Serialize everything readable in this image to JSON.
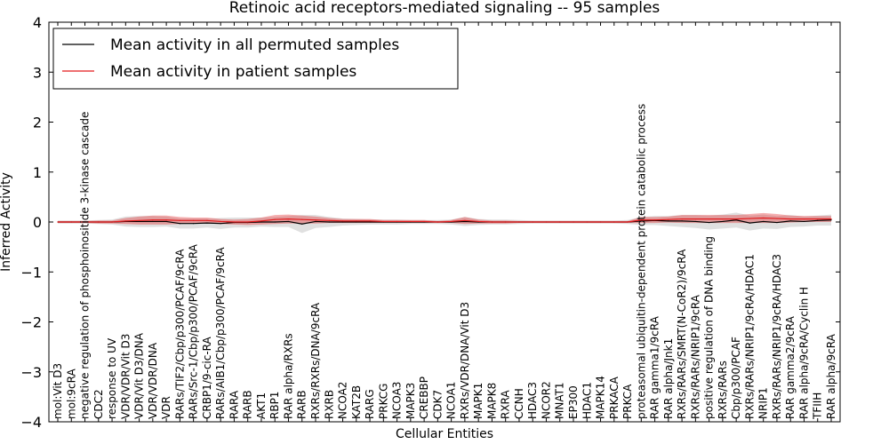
{
  "chart_data": {
    "type": "line",
    "title": "Retinoic acid receptors-mediated signaling -- 95 samples",
    "xlabel": "Cellular Entities",
    "ylabel": "Inferred Activity",
    "ylim": [
      -4,
      4
    ],
    "yticks": [
      -4,
      -3,
      -2,
      -1,
      0,
      1,
      2,
      3,
      4
    ],
    "ytick_labels": [
      "−4",
      "−3",
      "−2",
      "−1",
      "0",
      "1",
      "2",
      "3",
      "4"
    ],
    "legend": {
      "placement": "top-left",
      "entries": [
        {
          "label": "Mean activity in all permuted samples",
          "color": "#000000"
        },
        {
          "label": "Mean activity in patient samples",
          "color": "#e31a1c"
        }
      ]
    },
    "categories": [
      "mol:Vit D3",
      "mol:9cRA",
      "negative regulation of phosphoinositide 3-kinase cascade",
      "CDC2",
      "response to UV",
      "VDR/VDR/Vit D3",
      "VDR/Vit D3/DNA",
      "VDR/VDR/DNA",
      "VDR",
      "RARs/TIF2/Cbp/p300/PCAF/9cRA",
      "RARs/Src-1/Cbp/p300/PCAF/9cRA",
      "CRBP1/9-cic-RA",
      "RARs/AIB1/Cbp/p300/PCAF/9cRA",
      "RARA",
      "RARB",
      "AKT1",
      "RBP1",
      "RAR alpha/RXRs",
      "RARB",
      "RXRs/RXRs/DNA/9cRA",
      "RXRB",
      "NCOA2",
      "KAT2B",
      "RARG",
      "PRKCG",
      "NCOA3",
      "MAPK3",
      "CREBBP",
      "CDK7",
      "NCOA1",
      "RXRs/VDR/DNA/Vit D3",
      "MAPK1",
      "MAPK8",
      "RXRA",
      "CCNH",
      "HDAC3",
      "NCOR2",
      "MNAT1",
      "EP300",
      "HDAC1",
      "MAPK14",
      "PRKACA",
      "PRKCA",
      "proteasomal ubiquitin-dependent protein catabolic process",
      "RAR gamma1/9cRA",
      "RAR alpha/Jnk1",
      "RXRs/RARs/SMRT(N-CoR2)/9cRA",
      "RXRs/RARs/NRIP1/9cRA",
      "positive regulation of DNA binding",
      "RXRs/RARs",
      "Cbp/p300/PCAF",
      "RXRs/RARs/NRIP1/9cRA/HDAC1",
      "NRIP1",
      "RXRs/RARs/NRIP1/9cRA/HDAC3",
      "RAR gamma2/9cRA",
      "RAR alpha/9cRA/Cyclin H",
      "TFIIH",
      "RAR alpha/9cRA"
    ],
    "series": [
      {
        "name": "Mean activity in all permuted samples",
        "values": [
          0,
          0,
          0,
          0,
          0,
          0.01,
          0.01,
          0.01,
          0.01,
          -0.03,
          -0.03,
          -0.02,
          -0.03,
          -0.01,
          -0.01,
          0,
          0,
          0.01,
          -0.04,
          0.01,
          0,
          0,
          0,
          0,
          0,
          0,
          0,
          0,
          0,
          0,
          0.01,
          0,
          0,
          0,
          0,
          0,
          0,
          0,
          0,
          0,
          0,
          0,
          0,
          0.02,
          0.03,
          0.02,
          0.02,
          0.01,
          -0.01,
          0.01,
          0.04,
          -0.02,
          0.01,
          -0.01,
          0.02,
          0.01,
          0.03,
          0.04
        ],
        "spread": [
          0.03,
          0.03,
          0.03,
          0.04,
          0.05,
          0.1,
          0.11,
          0.11,
          0.1,
          0.1,
          0.1,
          0.09,
          0.11,
          0.1,
          0.1,
          0.09,
          0.1,
          0.11,
          0.18,
          0.13,
          0.1,
          0.07,
          0.06,
          0.05,
          0.05,
          0.05,
          0.04,
          0.04,
          0.04,
          0.05,
          0.09,
          0.06,
          0.05,
          0.05,
          0.04,
          0.03,
          0.03,
          0.03,
          0.03,
          0.03,
          0.03,
          0.03,
          0.04,
          0.08,
          0.09,
          0.1,
          0.12,
          0.13,
          0.14,
          0.14,
          0.15,
          0.15,
          0.14,
          0.13,
          0.12,
          0.1,
          0.1,
          0.11
        ]
      },
      {
        "name": "Mean activity in patient samples",
        "values": [
          0,
          0,
          0,
          0,
          0,
          0.02,
          0.03,
          0.04,
          0.04,
          0.03,
          0.03,
          0.03,
          0.01,
          0,
          0,
          0.02,
          0.05,
          0.06,
          0.05,
          0.04,
          0.03,
          0.02,
          0.02,
          0.02,
          0.01,
          0.01,
          0.01,
          0.01,
          0,
          0.01,
          0.03,
          0.01,
          0,
          0,
          0,
          0,
          0,
          0,
          0,
          0,
          0,
          0,
          0,
          0.04,
          0.04,
          0.05,
          0.06,
          0.06,
          0.06,
          0.06,
          0.06,
          0.07,
          0.08,
          0.07,
          0.06,
          0.06,
          0.06,
          0.06
        ],
        "spread": [
          0.02,
          0.02,
          0.02,
          0.03,
          0.03,
          0.06,
          0.08,
          0.09,
          0.09,
          0.07,
          0.06,
          0.06,
          0.05,
          0.05,
          0.06,
          0.07,
          0.09,
          0.09,
          0.08,
          0.07,
          0.05,
          0.04,
          0.04,
          0.04,
          0.03,
          0.03,
          0.03,
          0.03,
          0.02,
          0.03,
          0.07,
          0.04,
          0.03,
          0.03,
          0.02,
          0.02,
          0.02,
          0.02,
          0.02,
          0.02,
          0.02,
          0.02,
          0.02,
          0.06,
          0.06,
          0.06,
          0.08,
          0.08,
          0.08,
          0.08,
          0.08,
          0.09,
          0.1,
          0.09,
          0.07,
          0.06,
          0.06,
          0.06
        ]
      }
    ]
  }
}
